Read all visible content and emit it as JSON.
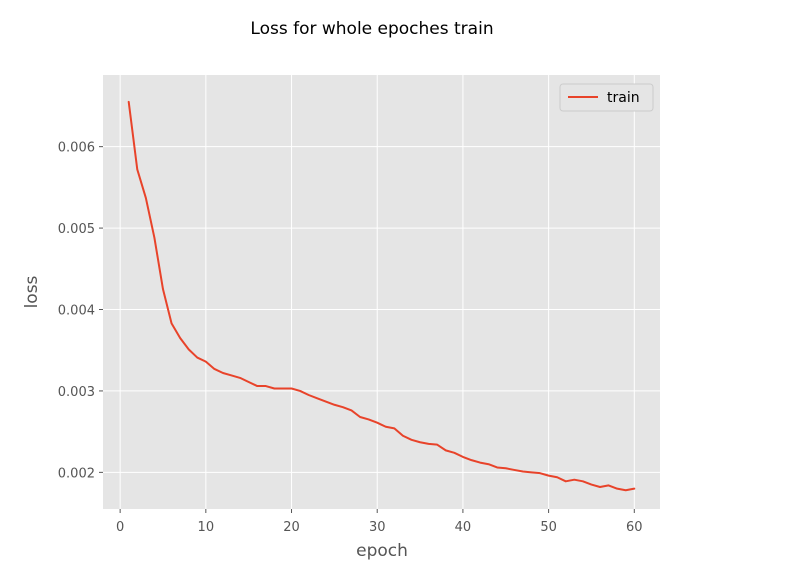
{
  "chart_data": {
    "type": "line",
    "title": "Loss for whole epoches train",
    "xlabel": "epoch",
    "ylabel": "loss",
    "xlim": [
      -2,
      63
    ],
    "ylim": [
      0.00155,
      0.00688
    ],
    "xticks": [
      0,
      10,
      20,
      30,
      40,
      50,
      60
    ],
    "xtick_labels": [
      "0",
      "10",
      "20",
      "30",
      "40",
      "50",
      "60"
    ],
    "yticks": [
      0.002,
      0.003,
      0.004,
      0.005,
      0.006
    ],
    "ytick_labels": [
      "0.002",
      "0.003",
      "0.004",
      "0.005",
      "0.006"
    ],
    "grid": true,
    "legend_position": "upper right",
    "colors": {
      "line": "#e8432a",
      "axes_bg": "#e5e5e5",
      "grid": "#ffffff",
      "tick_text": "#555555"
    },
    "series": [
      {
        "name": "train",
        "x": [
          1,
          2,
          3,
          4,
          5,
          6,
          7,
          8,
          9,
          10,
          11,
          12,
          13,
          14,
          15,
          16,
          17,
          18,
          19,
          20,
          21,
          22,
          23,
          24,
          25,
          26,
          27,
          28,
          29,
          30,
          31,
          32,
          33,
          34,
          35,
          36,
          37,
          38,
          39,
          40,
          41,
          42,
          43,
          44,
          45,
          46,
          47,
          48,
          49,
          50,
          51,
          52,
          53,
          54,
          55,
          56,
          57,
          58,
          59,
          60
        ],
        "y": [
          0.00655,
          0.00572,
          0.00537,
          0.00488,
          0.00425,
          0.00383,
          0.00365,
          0.00351,
          0.00341,
          0.00336,
          0.00327,
          0.00322,
          0.00319,
          0.00316,
          0.00311,
          0.00306,
          0.00306,
          0.00303,
          0.00303,
          0.00303,
          0.003,
          0.00295,
          0.00291,
          0.00287,
          0.00283,
          0.0028,
          0.00276,
          0.00268,
          0.00265,
          0.00261,
          0.00256,
          0.00254,
          0.00245,
          0.0024,
          0.00237,
          0.00235,
          0.00234,
          0.00227,
          0.00224,
          0.00219,
          0.00215,
          0.00212,
          0.0021,
          0.00206,
          0.00205,
          0.00203,
          0.00201,
          0.002,
          0.00199,
          0.00196,
          0.00194,
          0.00189,
          0.00191,
          0.00189,
          0.00185,
          0.00182,
          0.00184,
          0.0018,
          0.00178,
          0.0018
        ]
      }
    ]
  }
}
